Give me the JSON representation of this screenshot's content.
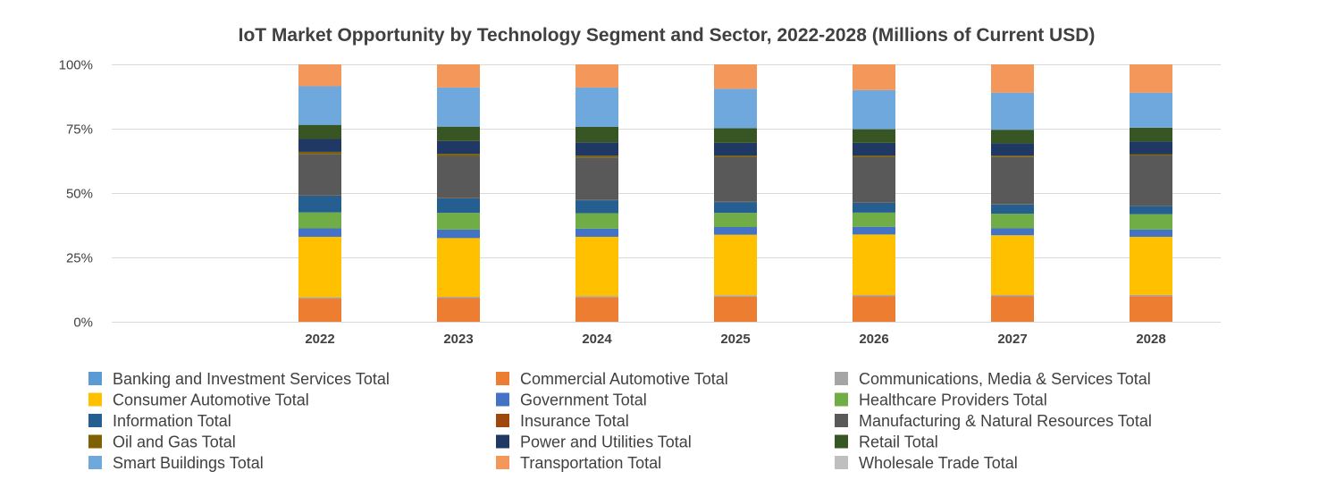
{
  "chart_data": {
    "type": "bar",
    "stacked": "percent",
    "title": "IoT Market Opportunity by Technology Segment and Sector, 2022-2028 (Millions of Current USD)",
    "xlabel": "",
    "ylabel": "",
    "ylim": [
      0,
      100
    ],
    "yticks": [
      "0%",
      "25%",
      "50%",
      "75%",
      "100%"
    ],
    "ytick_values": [
      0,
      25,
      50,
      75,
      100
    ],
    "grid": true,
    "legend_position": "bottom",
    "categories": [
      "2022",
      "2023",
      "2024",
      "2025",
      "2026",
      "2027",
      "2028"
    ],
    "series": [
      {
        "name": "Banking and Investment Services Total",
        "color": "#5B9BD5",
        "values": [
          0,
          0,
          0,
          0,
          0,
          0,
          0
        ]
      },
      {
        "name": "Commercial Automotive Total",
        "color": "#ED7D31",
        "values": [
          9.0,
          9.2,
          9.5,
          9.8,
          9.9,
          9.9,
          10.0
        ]
      },
      {
        "name": "Communications, Media & Services Total",
        "color": "#A5A5A5",
        "values": [
          0.5,
          0.5,
          0.5,
          0.5,
          0.5,
          0.5,
          0.5
        ]
      },
      {
        "name": "Consumer Automotive Total",
        "color": "#FFC000",
        "values": [
          23.5,
          22.8,
          23.0,
          23.5,
          23.5,
          23.2,
          22.5
        ]
      },
      {
        "name": "Government Total",
        "color": "#4472C4",
        "values": [
          3.3,
          3.3,
          3.2,
          3.0,
          3.0,
          2.7,
          2.8
        ]
      },
      {
        "name": "Healthcare Providers Total",
        "color": "#70AD47",
        "values": [
          6.2,
          6.5,
          6.0,
          5.5,
          5.5,
          5.7,
          6.0
        ]
      },
      {
        "name": "Information Total",
        "color": "#255E91",
        "values": [
          6.5,
          5.7,
          5.0,
          4.2,
          3.8,
          3.6,
          3.2
        ]
      },
      {
        "name": "Insurance Total",
        "color": "#9E480E",
        "values": [
          0.1,
          0.1,
          0.1,
          0.1,
          0.1,
          0.1,
          0.1
        ]
      },
      {
        "name": "Manufacturing & Natural Resources Total",
        "color": "#595959",
        "values": [
          16.1,
          16.3,
          16.5,
          17.3,
          17.6,
          18.3,
          19.5
        ]
      },
      {
        "name": "Oil and Gas Total",
        "color": "#806000",
        "values": [
          0.8,
          0.8,
          0.7,
          0.6,
          0.6,
          0.5,
          0.5
        ]
      },
      {
        "name": "Power and Utilities Total",
        "color": "#203864",
        "values": [
          5.0,
          5.0,
          5.2,
          5.0,
          5.0,
          4.8,
          4.9
        ]
      },
      {
        "name": "Retail Total",
        "color": "#375623",
        "values": [
          5.5,
          5.6,
          6.0,
          5.7,
          5.3,
          5.3,
          5.4
        ]
      },
      {
        "name": "Smart Buildings Total",
        "color": "#6FA8DC",
        "values": [
          15.0,
          15.2,
          15.3,
          15.3,
          15.2,
          14.4,
          13.6
        ]
      },
      {
        "name": "Transportation Total",
        "color": "#F4975A",
        "values": [
          8.5,
          9.0,
          9.0,
          9.5,
          10.0,
          11.0,
          11.0
        ]
      },
      {
        "name": "Wholesale Trade Total",
        "color": "#BFBFBF",
        "values": [
          0,
          0,
          0,
          0,
          0,
          0,
          0
        ]
      }
    ]
  }
}
